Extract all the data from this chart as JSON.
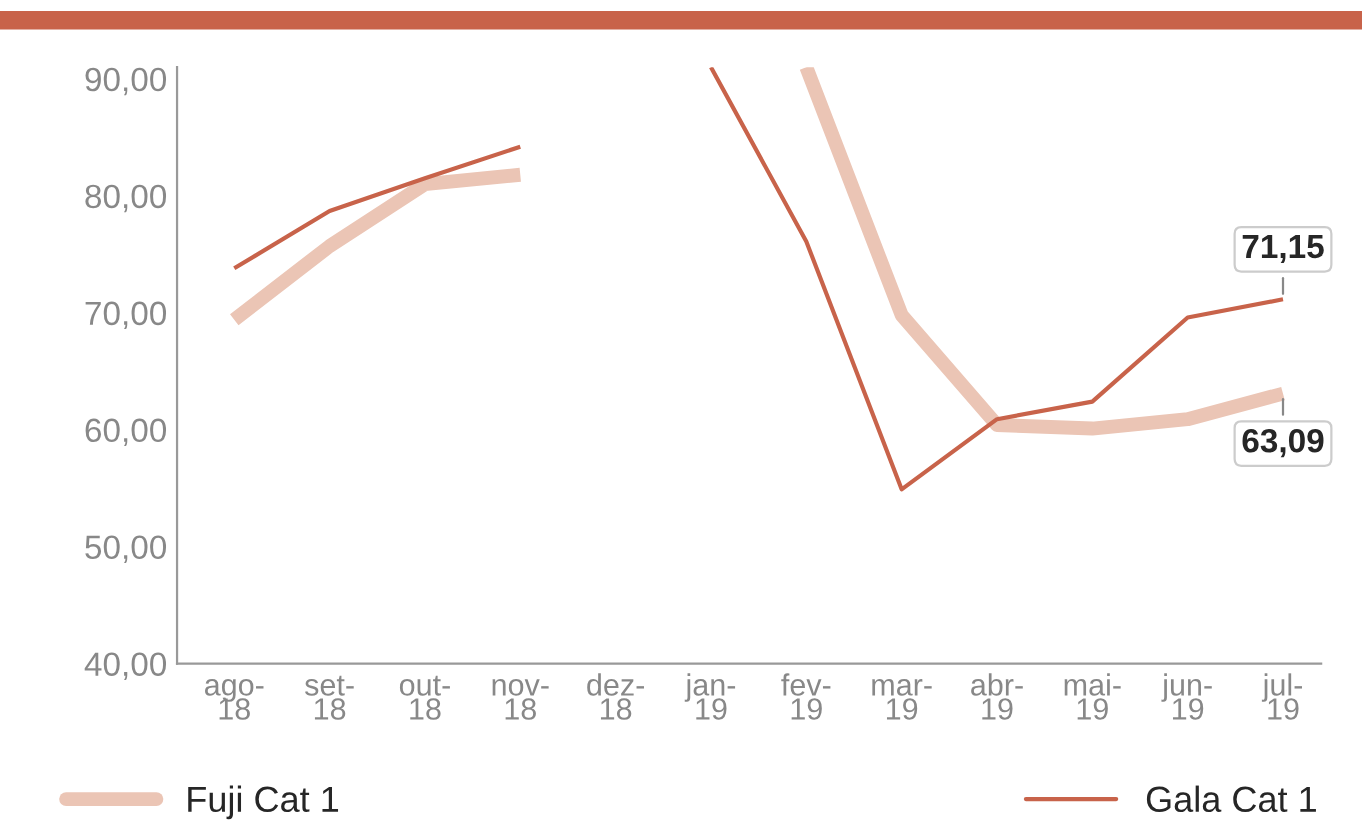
{
  "chart_data": {
    "type": "line",
    "categories": [
      "ago-\n18",
      "set-\n18",
      "out-\n18",
      "nov-\n18",
      "dez-\n18",
      "jan-\n19",
      "fev-\n19",
      "mar-\n19",
      "abr-\n19",
      "mai-\n19",
      "jun-\n19",
      "jul-\n19"
    ],
    "series": [
      {
        "name": "Fuji Cat 1",
        "color": "#ebc5b5",
        "values": [
          69.4,
          75.7,
          81.0,
          81.8,
          null,
          null,
          91,
          69.8,
          60.4,
          60.1,
          60.9,
          63.09
        ],
        "value_labels": [
          null,
          null,
          null,
          null,
          null,
          null,
          null,
          null,
          null,
          null,
          null,
          "63,09"
        ]
      },
      {
        "name": "Gala Cat 1",
        "color": "#c8634a",
        "values": [
          73.8,
          78.7,
          81.5,
          84.2,
          null,
          91,
          76.1,
          54.9,
          60.9,
          62.4,
          69.6,
          71.15
        ],
        "value_labels": [
          null,
          null,
          null,
          null,
          null,
          null,
          null,
          null,
          null,
          null,
          null,
          "71,15"
        ]
      }
    ],
    "ylim": [
      40,
      91
    ],
    "yticks": [
      {
        "value": 40,
        "label": "40,00"
      },
      {
        "value": 50,
        "label": "50,00"
      },
      {
        "value": 60,
        "label": "60,00"
      },
      {
        "value": 70,
        "label": "70,00"
      },
      {
        "value": 80,
        "label": "80,00"
      },
      {
        "value": 90,
        "label": "90,00"
      }
    ],
    "grid": false,
    "legend": "bottom",
    "line_style": "solid",
    "marker": "none"
  }
}
